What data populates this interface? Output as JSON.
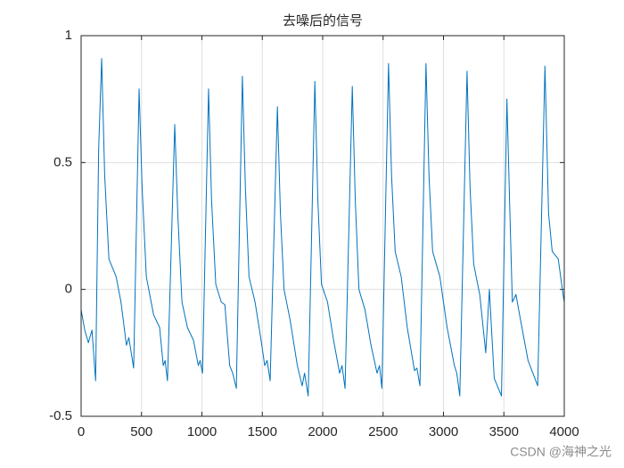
{
  "chart_data": {
    "type": "line",
    "title": "去噪后的信号",
    "x": [
      0,
      30,
      60,
      90,
      120,
      145,
      170,
      195,
      230,
      290,
      330,
      375,
      395,
      435,
      480,
      505,
      540,
      600,
      650,
      680,
      695,
      715,
      775,
      800,
      835,
      880,
      930,
      970,
      985,
      1005,
      1055,
      1080,
      1115,
      1160,
      1190,
      1230,
      1255,
      1285,
      1335,
      1360,
      1390,
      1440,
      1490,
      1520,
      1540,
      1565,
      1625,
      1650,
      1680,
      1730,
      1790,
      1830,
      1850,
      1880,
      1935,
      1960,
      1990,
      2040,
      2090,
      2140,
      2160,
      2185,
      2245,
      2270,
      2300,
      2350,
      2400,
      2450,
      2470,
      2490,
      2545,
      2570,
      2600,
      2650,
      2700,
      2760,
      2780,
      2805,
      2855,
      2880,
      2910,
      2970,
      3030,
      3090,
      3110,
      3135,
      3195,
      3220,
      3250,
      3300,
      3350,
      3380,
      3420,
      3480,
      3525,
      3550,
      3570,
      3600,
      3630,
      3700,
      3740,
      3780,
      3840,
      3870,
      3900,
      3950,
      3990,
      4000
    ],
    "values": [
      -0.08,
      -0.16,
      -0.21,
      -0.16,
      -0.36,
      0.55,
      0.91,
      0.45,
      0.12,
      0.05,
      -0.05,
      -0.22,
      -0.19,
      -0.31,
      0.79,
      0.4,
      0.05,
      -0.1,
      -0.15,
      -0.3,
      -0.28,
      -0.36,
      0.65,
      0.3,
      -0.05,
      -0.15,
      -0.2,
      -0.3,
      -0.28,
      -0.33,
      0.79,
      0.35,
      0.02,
      -0.05,
      -0.06,
      -0.3,
      -0.33,
      -0.39,
      0.84,
      0.4,
      0.05,
      -0.05,
      -0.2,
      -0.3,
      -0.28,
      -0.36,
      0.72,
      0.3,
      0,
      -0.12,
      -0.3,
      -0.38,
      -0.33,
      -0.42,
      0.82,
      0.35,
      0.02,
      -0.05,
      -0.2,
      -0.33,
      -0.3,
      -0.39,
      0.8,
      0.35,
      0,
      -0.08,
      -0.22,
      -0.33,
      -0.3,
      -0.39,
      0.89,
      0.45,
      0.15,
      0.05,
      -0.15,
      -0.32,
      -0.31,
      -0.38,
      0.89,
      0.45,
      0.15,
      0.05,
      -0.15,
      -0.3,
      -0.33,
      -0.42,
      0.86,
      0.4,
      0.1,
      -0.02,
      -0.25,
      0,
      -0.35,
      -0.42,
      0.75,
      0.3,
      -0.05,
      -0.02,
      -0.1,
      -0.28,
      -0.33,
      -0.38,
      0.88,
      0.3,
      0.15,
      0.12,
      -0.02,
      -0.05
    ],
    "color": "#0072bd",
    "xlim": [
      0,
      4000
    ],
    "xticks": [
      0,
      500,
      1000,
      1500,
      2000,
      2500,
      3000,
      3500,
      4000
    ],
    "ylim": [
      -0.5,
      1
    ],
    "yticks": [
      -0.5,
      0,
      0.5,
      1
    ],
    "grid": true
  },
  "watermark": "CSDN @海神之光"
}
